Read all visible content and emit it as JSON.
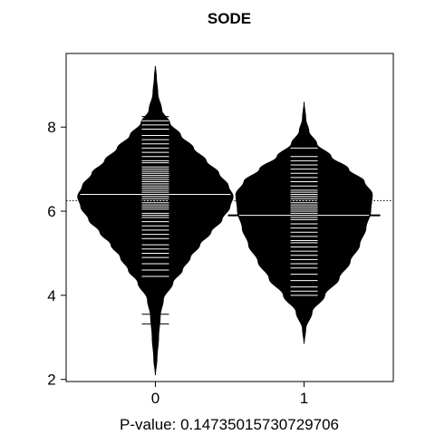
{
  "chart_data": {
    "type": "beanplot",
    "title": "SODE",
    "xlabel": "P-value: 0.14735015730729706",
    "ylabel": "",
    "ylim": [
      1.95,
      9.75
    ],
    "xlim": [
      -0.6,
      1.6
    ],
    "yticks": [
      "2",
      "4",
      "6",
      "8"
    ],
    "categories": [
      "0",
      "1"
    ],
    "overall_mean": 6.25,
    "colors": {
      "bean": "#000000",
      "line": "#ffffff",
      "axis": "#000000",
      "background": "#ffffff"
    },
    "series": [
      {
        "x": 0,
        "mean": 6.4,
        "density": [
          [
            2.1,
            0.0
          ],
          [
            2.5,
            0.01
          ],
          [
            3.0,
            0.02
          ],
          [
            3.5,
            0.03
          ],
          [
            3.9,
            0.05
          ],
          [
            4.3,
            0.11
          ],
          [
            4.6,
            0.17
          ],
          [
            4.9,
            0.22
          ],
          [
            5.2,
            0.28
          ],
          [
            5.5,
            0.35
          ],
          [
            5.8,
            0.42
          ],
          [
            6.1,
            0.47
          ],
          [
            6.35,
            0.49
          ],
          [
            6.6,
            0.46
          ],
          [
            6.9,
            0.4
          ],
          [
            7.2,
            0.32
          ],
          [
            7.5,
            0.24
          ],
          [
            7.8,
            0.16
          ],
          [
            8.1,
            0.09
          ],
          [
            8.4,
            0.04
          ],
          [
            8.8,
            0.015
          ],
          [
            9.2,
            0.006
          ],
          [
            9.45,
            0.0
          ]
        ],
        "points": [
          3.32,
          3.55,
          4.45,
          4.6,
          4.75,
          4.9,
          5.0,
          5.1,
          5.2,
          5.35,
          5.45,
          5.55,
          5.65,
          5.75,
          5.85,
          5.9,
          5.95,
          6.05,
          6.1,
          6.15,
          6.2,
          6.25,
          6.3,
          6.35,
          6.4,
          6.45,
          6.5,
          6.55,
          6.6,
          6.65,
          6.7,
          6.75,
          6.8,
          6.85,
          6.9,
          6.95,
          7.0,
          7.05,
          7.15,
          7.2,
          7.3,
          7.4,
          7.5,
          7.6,
          7.7,
          7.8,
          7.95,
          8.05,
          8.15,
          8.25
        ]
      },
      {
        "x": 1,
        "mean": 5.9,
        "density": [
          [
            2.85,
            0.0
          ],
          [
            3.2,
            0.01
          ],
          [
            3.6,
            0.05
          ],
          [
            4.0,
            0.13
          ],
          [
            4.4,
            0.22
          ],
          [
            4.8,
            0.29
          ],
          [
            5.2,
            0.35
          ],
          [
            5.6,
            0.39
          ],
          [
            6.0,
            0.42
          ],
          [
            6.4,
            0.43
          ],
          [
            6.7,
            0.38
          ],
          [
            7.0,
            0.28
          ],
          [
            7.3,
            0.17
          ],
          [
            7.6,
            0.08
          ],
          [
            7.9,
            0.03
          ],
          [
            8.2,
            0.01
          ],
          [
            8.6,
            0.0
          ]
        ],
        "points": [
          4.0,
          4.1,
          4.2,
          4.35,
          4.5,
          4.65,
          4.75,
          4.85,
          4.95,
          5.05,
          5.15,
          5.25,
          5.3,
          5.4,
          5.5,
          5.6,
          5.7,
          5.8,
          5.85,
          5.9,
          5.95,
          6.0,
          6.05,
          6.1,
          6.15,
          6.2,
          6.25,
          6.3,
          6.35,
          6.4,
          6.45,
          6.5,
          6.6,
          6.7,
          6.8,
          6.9,
          7.0,
          7.1,
          7.2,
          7.3,
          7.5
        ]
      }
    ]
  }
}
